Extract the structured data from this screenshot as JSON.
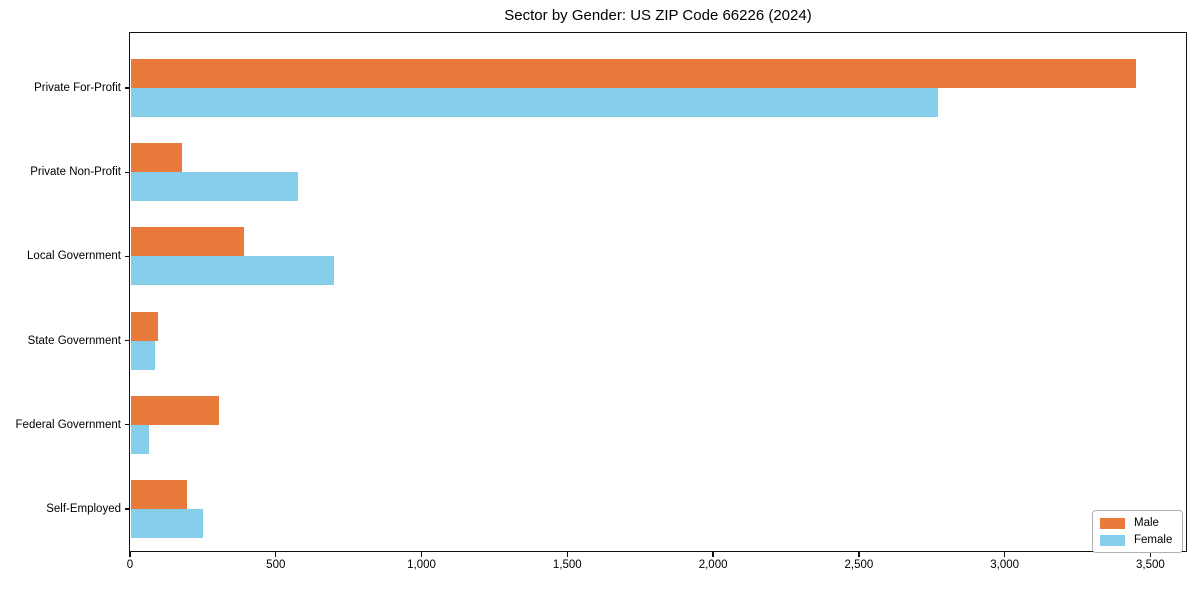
{
  "chart_data": {
    "type": "bar",
    "orientation": "horizontal",
    "title": "Sector by Gender: US ZIP Code 66226 (2024)",
    "categories": [
      "Private For-Profit",
      "Private Non-Profit",
      "Local Government",
      "State Government",
      "Federal Government",
      "Self-Employed"
    ],
    "series": [
      {
        "name": "Male",
        "color": "#e87a3b",
        "values": [
          3450,
          180,
          390,
          95,
          305,
          195
        ]
      },
      {
        "name": "Female",
        "color": "#87ceeb",
        "values": [
          2770,
          575,
          700,
          85,
          65,
          250
        ]
      }
    ],
    "xlabel": "",
    "ylabel": "",
    "xlim": [
      0,
      3622
    ],
    "xticks": [
      0,
      500,
      1000,
      1500,
      2000,
      2500,
      3000,
      3500
    ],
    "xtick_labels": [
      "0",
      "500",
      "1,000",
      "1,500",
      "2,000",
      "2,500",
      "3,000",
      "3,500"
    ],
    "grid": false,
    "legend": {
      "position": "lower-right",
      "entries": [
        "Male",
        "Female"
      ]
    },
    "axis_color": "#111111",
    "background_color": "#ffffff"
  }
}
